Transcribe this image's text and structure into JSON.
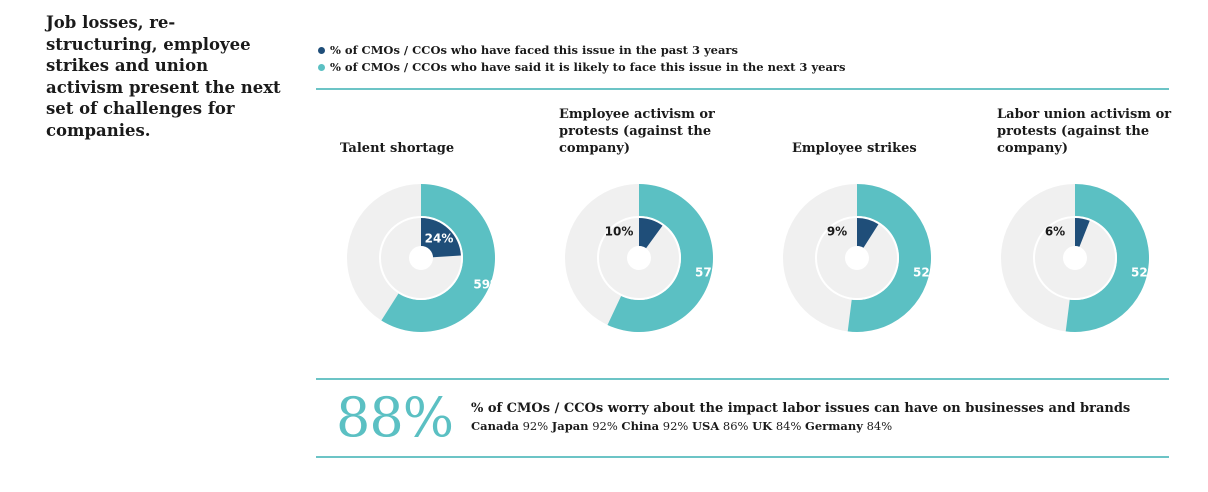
{
  "headline": "Job losses, re-structuring, employee strikes and union activism present the next set of challenges for companies.",
  "colors": {
    "past": "#1f4e79",
    "future": "#5bc0c3",
    "outer_bg": "#f0f0f0",
    "inner_bg": "#f0f0f0",
    "rule": "#6cc4c6"
  },
  "legend": [
    {
      "label": "% of CMOs / CCOs who have faced this issue in the past 3 years",
      "color": "#1f4e79"
    },
    {
      "label": "% of CMOs / CCOs who have said it is likely to face this issue in the next 3 years",
      "color": "#5bc0c3"
    }
  ],
  "chart_data": {
    "type": "pie",
    "variant": "nested-donut",
    "series": [
      {
        "name": "% of CMOs / CCOs who have faced this issue in the past 3 years",
        "ring": "inner"
      },
      {
        "name": "% of CMOs / CCOs who have said it is likely to face this issue in the next 3 years",
        "ring": "outer"
      }
    ],
    "charts": [
      {
        "title": "Talent shortage",
        "past": 24,
        "future": 59,
        "past_label": "24%",
        "future_label": "59%"
      },
      {
        "title": "Employee activism or protests (against the company)",
        "past": 10,
        "future": 57,
        "past_label": "10%",
        "future_label": "57%"
      },
      {
        "title": "Employee strikes",
        "past": 9,
        "future": 52,
        "past_label": "9%",
        "future_label": "52%"
      },
      {
        "title": "Labor union activism or protests (against the company)",
        "past": 6,
        "future": 52,
        "past_label": "6%",
        "future_label": "52%"
      }
    ]
  },
  "stat": {
    "value": "88%",
    "headline": "% of CMOs / CCOs worry about the impact labor issues can have on businesses and brands",
    "countries": [
      {
        "name": "Canada",
        "value": "92%"
      },
      {
        "name": "Japan",
        "value": "92%"
      },
      {
        "name": "China",
        "value": "92%"
      },
      {
        "name": "USA",
        "value": "86%"
      },
      {
        "name": "UK",
        "value": "84%"
      },
      {
        "name": "Germany",
        "value": "84%"
      }
    ]
  }
}
